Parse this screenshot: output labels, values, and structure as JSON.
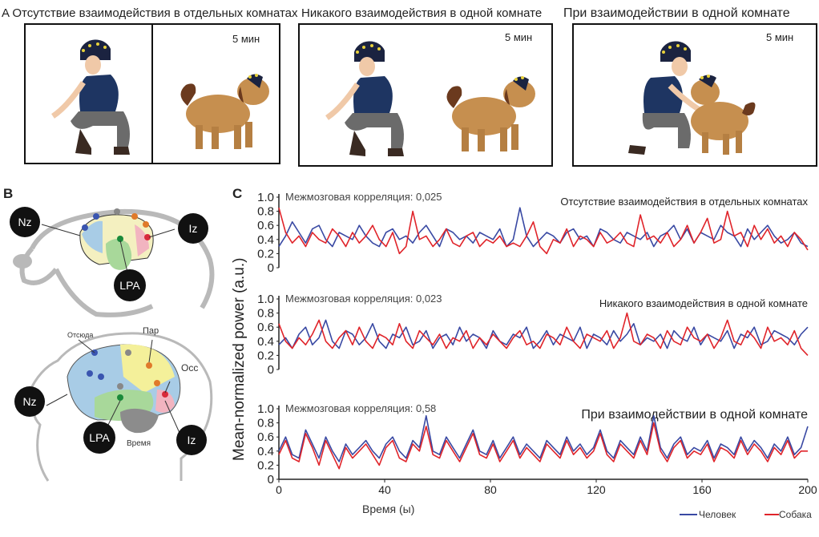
{
  "panel_a": {
    "label": "A",
    "titles": [
      "Отсутствие взаимодействия в отдельных комнатах",
      "Никакого взаимодействия в одной комнате",
      "При взаимодействии в одной комнате"
    ],
    "duration_label": "5 мин"
  },
  "panel_b": {
    "label": "B",
    "dog_nodes": [
      "Nz",
      "Iz",
      "LPA"
    ],
    "human_nodes": [
      "Nz",
      "Iz",
      "LPA"
    ],
    "region_labels": [
      "Отсюда",
      "Пар",
      "Осс",
      "Время"
    ]
  },
  "panel_c": {
    "label": "C",
    "ylabel": "Mean-normalized power (a.u.)",
    "xlabel": "Время (ы)",
    "legend": [
      "Человек",
      "Собака"
    ],
    "colors": {
      "human": "#3949a3",
      "dog": "#e0242a"
    }
  },
  "chart_data": [
    {
      "type": "line",
      "title": "Отсутствие взаимодействия в отдельных комнатах",
      "annotation": "Межмозговая корреляция: 0,025",
      "xlim": [
        0,
        200
      ],
      "ylim": [
        0,
        1
      ],
      "x_ticks": [
        0,
        40,
        80,
        120,
        160,
        200
      ],
      "y_ticks": [
        "0",
        "0.2",
        "0.4",
        "0.6",
        "0.8",
        "1.0"
      ],
      "series": [
        {
          "name": "Человек",
          "values": [
            0.3,
            0.45,
            0.65,
            0.5,
            0.35,
            0.55,
            0.6,
            0.4,
            0.3,
            0.5,
            0.45,
            0.4,
            0.6,
            0.45,
            0.35,
            0.3,
            0.5,
            0.55,
            0.4,
            0.45,
            0.35,
            0.5,
            0.6,
            0.45,
            0.3,
            0.55,
            0.5,
            0.4,
            0.45,
            0.35,
            0.5,
            0.45,
            0.4,
            0.55,
            0.3,
            0.4,
            0.85,
            0.45,
            0.3,
            0.4,
            0.5,
            0.45,
            0.35,
            0.5,
            0.55,
            0.4,
            0.45,
            0.3,
            0.55,
            0.5,
            0.4,
            0.35,
            0.5,
            0.45,
            0.4,
            0.5,
            0.3,
            0.45,
            0.5,
            0.6,
            0.4,
            0.55,
            0.35,
            0.5,
            0.45,
            0.4,
            0.6,
            0.5,
            0.45,
            0.3,
            0.55,
            0.4,
            0.5,
            0.6,
            0.45,
            0.35,
            0.4,
            0.5,
            0.35,
            0.3
          ]
        },
        {
          "name": "Собака",
          "values": [
            0.85,
            0.5,
            0.35,
            0.45,
            0.3,
            0.5,
            0.4,
            0.35,
            0.55,
            0.45,
            0.3,
            0.5,
            0.35,
            0.45,
            0.6,
            0.4,
            0.3,
            0.5,
            0.2,
            0.3,
            0.8,
            0.4,
            0.45,
            0.3,
            0.4,
            0.55,
            0.35,
            0.3,
            0.45,
            0.5,
            0.3,
            0.4,
            0.35,
            0.45,
            0.3,
            0.35,
            0.3,
            0.45,
            0.65,
            0.3,
            0.2,
            0.4,
            0.35,
            0.55,
            0.3,
            0.45,
            0.4,
            0.3,
            0.5,
            0.35,
            0.4,
            0.5,
            0.35,
            0.3,
            0.75,
            0.4,
            0.45,
            0.35,
            0.5,
            0.3,
            0.4,
            0.6,
            0.35,
            0.5,
            0.7,
            0.35,
            0.4,
            0.8,
            0.45,
            0.5,
            0.3,
            0.6,
            0.4,
            0.55,
            0.35,
            0.45,
            0.3,
            0.5,
            0.4,
            0.25
          ]
        }
      ]
    },
    {
      "type": "line",
      "title": "Никакого взаимодействия в одной комнате",
      "annotation": "Межмозговая корреляция: 0,023",
      "xlim": [
        0,
        200
      ],
      "ylim": [
        0,
        1
      ],
      "x_ticks": [
        0,
        40,
        80,
        120,
        160,
        200
      ],
      "y_ticks": [
        "0",
        "0.2",
        "0.4",
        "0.6",
        "0.8",
        "1.0"
      ],
      "series": [
        {
          "name": "Человек",
          "values": [
            0.35,
            0.45,
            0.3,
            0.5,
            0.6,
            0.35,
            0.45,
            0.7,
            0.4,
            0.3,
            0.55,
            0.5,
            0.35,
            0.45,
            0.65,
            0.4,
            0.3,
            0.5,
            0.45,
            0.6,
            0.35,
            0.4,
            0.55,
            0.3,
            0.45,
            0.5,
            0.35,
            0.6,
            0.4,
            0.5,
            0.45,
            0.3,
            0.55,
            0.4,
            0.35,
            0.5,
            0.45,
            0.6,
            0.3,
            0.4,
            0.55,
            0.35,
            0.5,
            0.45,
            0.4,
            0.6,
            0.3,
            0.5,
            0.45,
            0.35,
            0.55,
            0.4,
            0.5,
            0.65,
            0.35,
            0.45,
            0.4,
            0.5,
            0.3,
            0.55,
            0.45,
            0.4,
            0.6,
            0.35,
            0.5,
            0.45,
            0.4,
            0.55,
            0.3,
            0.5,
            0.45,
            0.6,
            0.35,
            0.4,
            0.55,
            0.5,
            0.45,
            0.35,
            0.5,
            0.6
          ]
        },
        {
          "name": "Собака",
          "values": [
            0.65,
            0.4,
            0.3,
            0.45,
            0.35,
            0.5,
            0.7,
            0.4,
            0.3,
            0.45,
            0.55,
            0.35,
            0.6,
            0.4,
            0.3,
            0.5,
            0.45,
            0.35,
            0.65,
            0.4,
            0.3,
            0.55,
            0.45,
            0.35,
            0.5,
            0.3,
            0.45,
            0.4,
            0.55,
            0.3,
            0.45,
            0.35,
            0.5,
            0.4,
            0.3,
            0.45,
            0.55,
            0.35,
            0.4,
            0.3,
            0.5,
            0.45,
            0.35,
            0.6,
            0.4,
            0.3,
            0.5,
            0.45,
            0.4,
            0.55,
            0.3,
            0.45,
            0.8,
            0.4,
            0.35,
            0.5,
            0.45,
            0.3,
            0.55,
            0.4,
            0.35,
            0.6,
            0.45,
            0.4,
            0.5,
            0.3,
            0.45,
            0.7,
            0.4,
            0.35,
            0.55,
            0.45,
            0.3,
            0.6,
            0.4,
            0.45,
            0.35,
            0.55,
            0.3,
            0.2
          ]
        }
      ]
    },
    {
      "type": "line",
      "title": "При взаимодействии в одной комнате",
      "annotation": "Межмозговая корреляция: 0,58",
      "xlim": [
        0,
        200
      ],
      "ylim": [
        0,
        1
      ],
      "x_ticks": [
        0,
        40,
        80,
        120,
        160,
        200
      ],
      "y_ticks": [
        "0",
        "0.2",
        "0.4",
        "0.6",
        "0.8",
        "1.0"
      ],
      "series": [
        {
          "name": "Человек",
          "values": [
            0.4,
            0.6,
            0.35,
            0.3,
            0.7,
            0.5,
            0.3,
            0.6,
            0.4,
            0.25,
            0.5,
            0.35,
            0.45,
            0.55,
            0.4,
            0.3,
            0.5,
            0.6,
            0.4,
            0.3,
            0.55,
            0.45,
            0.9,
            0.4,
            0.35,
            0.6,
            0.45,
            0.3,
            0.5,
            0.7,
            0.4,
            0.35,
            0.55,
            0.3,
            0.45,
            0.6,
            0.35,
            0.5,
            0.4,
            0.3,
            0.55,
            0.45,
            0.35,
            0.6,
            0.4,
            0.5,
            0.35,
            0.45,
            0.7,
            0.4,
            0.3,
            0.55,
            0.45,
            0.35,
            0.6,
            0.4,
            0.9,
            0.45,
            0.3,
            0.5,
            0.6,
            0.35,
            0.45,
            0.4,
            0.55,
            0.3,
            0.5,
            0.45,
            0.35,
            0.6,
            0.4,
            0.55,
            0.45,
            0.3,
            0.5,
            0.4,
            0.6,
            0.35,
            0.45,
            0.75
          ]
        },
        {
          "name": "Собака",
          "values": [
            0.35,
            0.55,
            0.3,
            0.25,
            0.65,
            0.45,
            0.2,
            0.55,
            0.35,
            0.15,
            0.45,
            0.3,
            0.4,
            0.5,
            0.35,
            0.2,
            0.45,
            0.55,
            0.3,
            0.25,
            0.5,
            0.4,
            0.75,
            0.35,
            0.3,
            0.55,
            0.4,
            0.25,
            0.45,
            0.65,
            0.35,
            0.3,
            0.5,
            0.25,
            0.4,
            0.55,
            0.3,
            0.45,
            0.35,
            0.25,
            0.5,
            0.4,
            0.3,
            0.55,
            0.35,
            0.45,
            0.3,
            0.4,
            0.65,
            0.35,
            0.25,
            0.5,
            0.4,
            0.3,
            0.55,
            0.35,
            0.8,
            0.4,
            0.25,
            0.45,
            0.55,
            0.3,
            0.4,
            0.35,
            0.5,
            0.25,
            0.45,
            0.4,
            0.3,
            0.55,
            0.35,
            0.5,
            0.4,
            0.25,
            0.45,
            0.35,
            0.55,
            0.3,
            0.4,
            0.4
          ]
        }
      ]
    }
  ]
}
